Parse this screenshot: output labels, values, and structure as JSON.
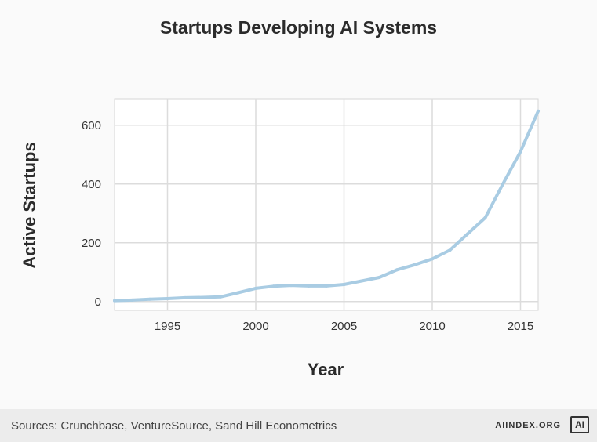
{
  "chart_data": {
    "type": "line",
    "title": "Startups Developing AI Systems",
    "xlabel": "Year",
    "ylabel": "Active Startups",
    "xlim": [
      1992,
      2016
    ],
    "ylim": [
      -30,
      690
    ],
    "x_ticks": [
      1995,
      2000,
      2005,
      2010,
      2015
    ],
    "y_ticks": [
      0,
      200,
      400,
      600
    ],
    "grid": true,
    "series_color": "#a9cce3",
    "series": [
      {
        "x": [
          1992,
          1993,
          1994,
          1995,
          1996,
          1997,
          1998,
          1999,
          2000,
          2001,
          2002,
          2003,
          2004,
          2005,
          2006,
          2007,
          2008,
          2009,
          2010,
          2011,
          2012,
          2013,
          2014,
          2015,
          2016
        ],
        "values": [
          3,
          5,
          8,
          10,
          13,
          14,
          16,
          30,
          45,
          52,
          55,
          53,
          53,
          58,
          70,
          82,
          108,
          125,
          145,
          175,
          230,
          285,
          400,
          510,
          648
        ]
      }
    ]
  },
  "footer": {
    "source": "Sources: Crunchbase, VentureSource, Sand Hill Econometrics",
    "brand": "AIINDEX.ORG",
    "logo": "AI"
  }
}
